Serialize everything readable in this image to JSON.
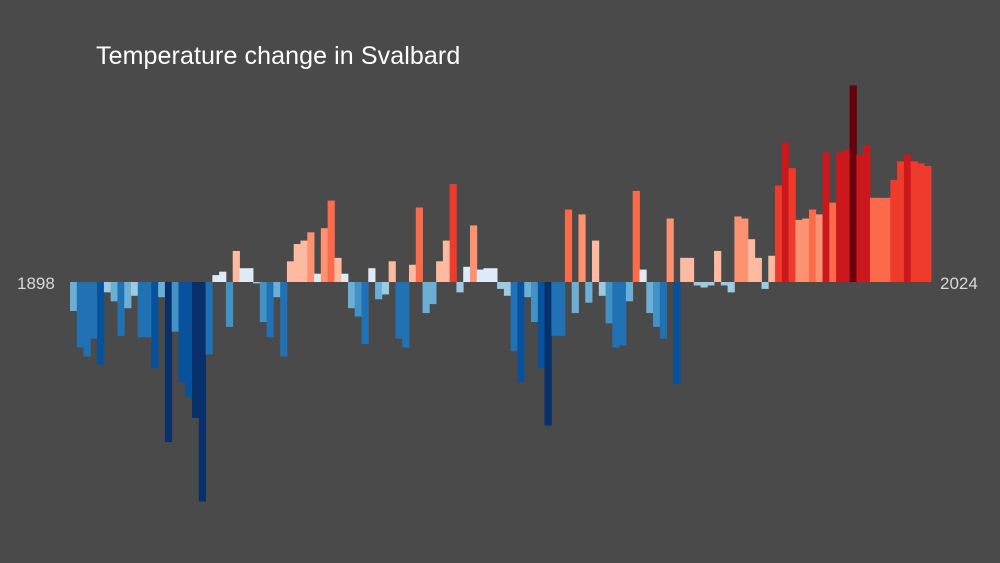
{
  "chart_data": {
    "type": "bar",
    "title": "Temperature change in Svalbard",
    "start_label": "1898",
    "end_label": "2024",
    "x_start": 1898,
    "x_end": 2024,
    "ylim": [
      -3.2,
      2.85
    ],
    "baseline": 0,
    "grid": false,
    "legend": "none",
    "color_scale": {
      "cold_extreme": "#08306b",
      "cold": "#2171b5",
      "cool": "#9ecae1",
      "neutral": "#deebf7",
      "warm": "#fcbba1",
      "hot": "#ef3b2c",
      "hot_extreme": "#67000d"
    },
    "values": [
      -0.42,
      -0.95,
      -1.08,
      -0.82,
      -1.2,
      -0.15,
      -0.28,
      -0.78,
      -0.38,
      -0.2,
      -0.8,
      -0.8,
      -1.25,
      -0.22,
      -2.32,
      -0.72,
      -1.45,
      -1.67,
      -1.97,
      -3.18,
      -1.05,
      0.1,
      0.15,
      -0.65,
      0.45,
      0.2,
      0.2,
      -0.02,
      -0.58,
      -0.8,
      -0.22,
      -1.08,
      0.3,
      0.55,
      0.6,
      0.72,
      0.12,
      0.78,
      1.18,
      0.35,
      0.12,
      -0.38,
      -0.5,
      -0.9,
      0.2,
      -0.25,
      -0.18,
      0.3,
      -0.82,
      -0.95,
      0.25,
      1.08,
      -0.45,
      -0.32,
      0.3,
      0.6,
      1.42,
      -0.15,
      0.22,
      0.82,
      0.18,
      0.2,
      0.2,
      -0.1,
      -0.2,
      -1.0,
      -1.45,
      -0.22,
      -0.58,
      -1.25,
      -2.08,
      -0.78,
      -0.78,
      1.05,
      -0.45,
      0.98,
      -0.3,
      0.6,
      -0.2,
      -0.6,
      -0.95,
      -0.92,
      -0.28,
      1.32,
      0.18,
      -0.45,
      -0.65,
      -0.82,
      0.92,
      -1.48,
      0.35,
      0.35,
      -0.05,
      -0.08,
      -0.05,
      0.45,
      -0.05,
      -0.15,
      0.95,
      0.92,
      0.62,
      0.35,
      -0.1,
      0.38,
      1.4,
      2.02,
      1.65,
      0.9,
      0.92,
      1.05,
      0.98,
      1.88,
      1.15,
      1.88,
      1.92,
      2.85,
      1.85,
      1.98,
      1.22,
      1.22,
      1.22,
      1.48,
      1.75,
      1.85,
      1.75,
      1.72,
      1.68
    ]
  }
}
